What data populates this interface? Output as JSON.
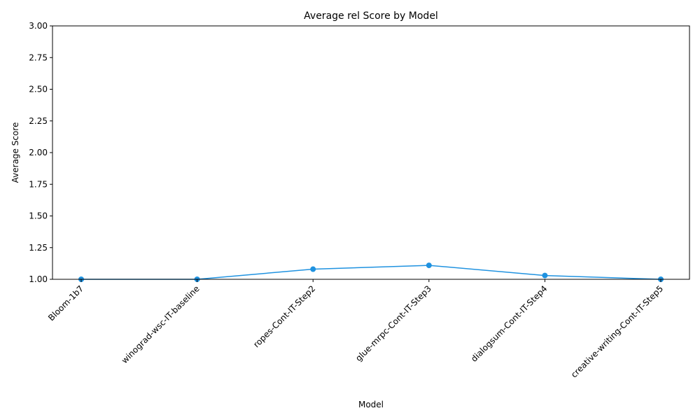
{
  "chart_data": {
    "type": "line",
    "title": "Average rel Score by Model",
    "xlabel": "Model",
    "ylabel": "Average Score",
    "categories": [
      "Bloom-1b7",
      "winograd-wsc-IT-baseline",
      "ropes-Cont-IT-Step2",
      "glue-mrpc-Cont-IT-Step3",
      "dialogsum-Cont-IT-Step4",
      "creative-writing-Cont-IT-Step5"
    ],
    "series": [
      {
        "values": [
          1.0,
          1.0,
          1.08,
          1.11,
          1.03,
          1.0
        ],
        "color": "#1f92e0",
        "marker": "circle"
      }
    ],
    "ylim": [
      1.0,
      3.0
    ],
    "yticks": [
      "1.00",
      "1.25",
      "1.50",
      "1.75",
      "2.00",
      "2.25",
      "2.50",
      "2.75",
      "3.00"
    ],
    "grid": false,
    "legend": "none"
  }
}
